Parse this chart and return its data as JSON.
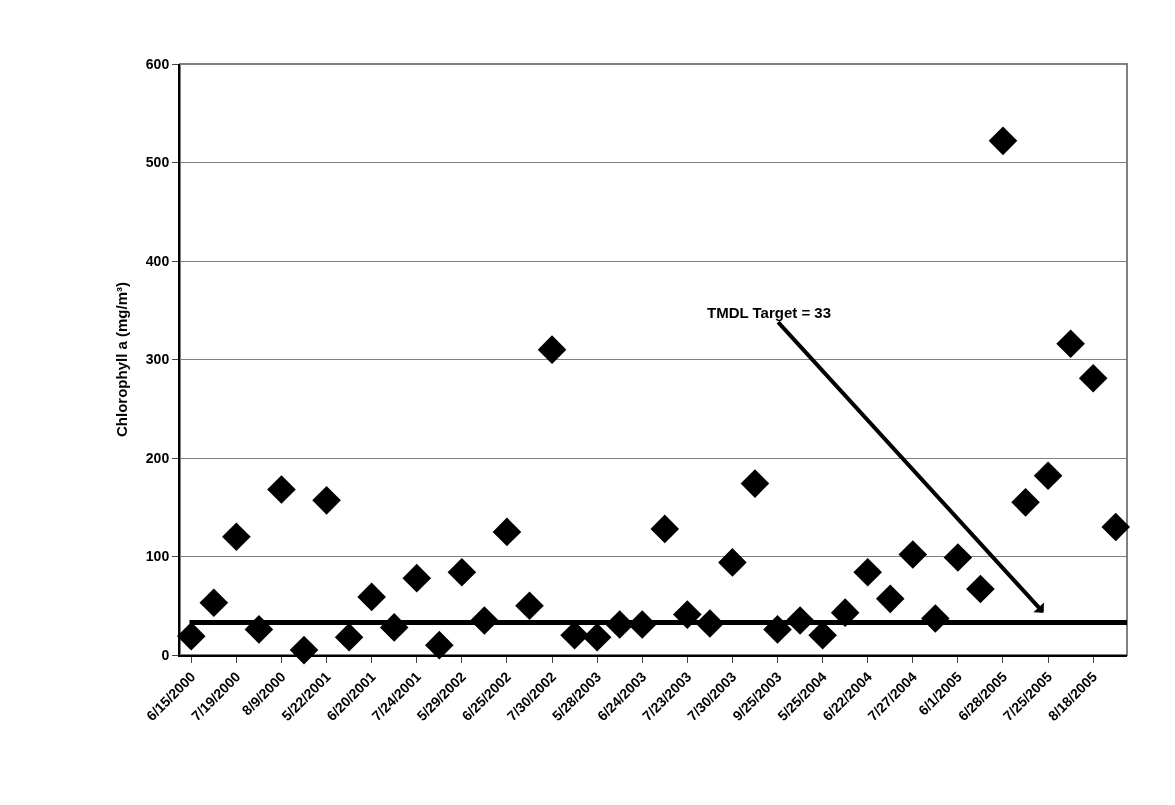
{
  "chart_data": {
    "type": "scatter",
    "ylabel": "Chlorophyll a (mg/m³)",
    "categories": [
      "6/15/2000",
      null,
      "7/19/2000",
      null,
      "8/9/2000",
      null,
      "5/22/2001",
      null,
      "6/20/2001",
      null,
      "7/24/2001",
      null,
      "5/29/2002",
      null,
      "6/25/2002",
      null,
      "7/30/2002",
      null,
      "5/28/2003",
      null,
      "6/24/2003",
      null,
      "7/23/2003",
      null,
      "7/30/2003",
      null,
      "9/25/2003",
      null,
      "5/25/2004",
      null,
      "6/22/2004",
      null,
      "7/27/2004",
      null,
      "6/1/2005",
      null,
      "6/28/2005",
      null,
      "7/25/2005",
      null,
      "8/18/2005",
      null
    ],
    "series": [
      {
        "color": "#000000",
        "values": [
          19,
          53,
          120,
          26,
          168,
          5,
          157,
          18,
          59,
          28,
          78,
          10,
          84,
          35,
          125,
          50,
          310,
          20,
          18,
          31,
          31,
          128,
          41,
          32,
          94,
          174,
          26,
          35,
          20,
          43,
          84,
          57,
          102,
          37,
          99,
          67,
          522,
          155,
          182,
          316,
          281,
          130
        ]
      }
    ],
    "ylim": [
      0,
      600
    ],
    "yticks": [
      0,
      100,
      200,
      300,
      400,
      500,
      600
    ],
    "grid": "y",
    "marker": "diamond",
    "ref_lines": [
      {
        "axis": "y",
        "value": 33,
        "label": "TMDL Target = 33",
        "color": "#000000",
        "line_style": "solid"
      }
    ]
  }
}
